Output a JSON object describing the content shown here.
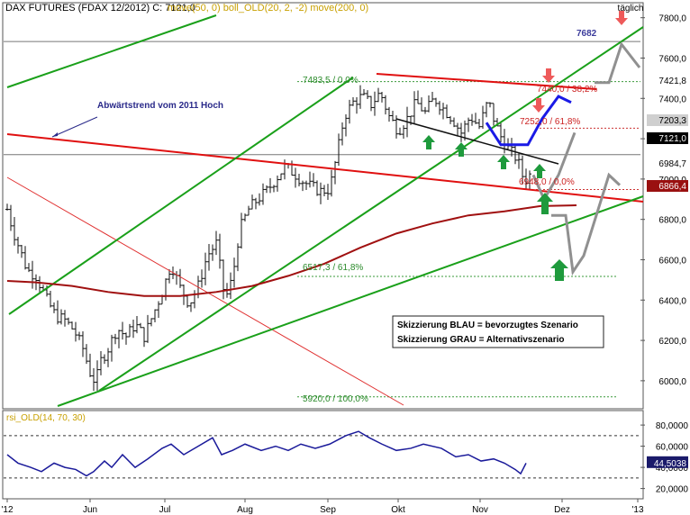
{
  "chart_data": [
    {
      "type": "bar",
      "subtype": "ohlc-price-chart",
      "instrument": "DAX FUTURES (FDAX 12/2012)",
      "header": {
        "symbol_text": "DAX FUTURES (FDAX 12/2012) C: 7121,0",
        "indicators_text": "move(50, 0) boll_OLD(20, 2, -2) move(200, 0)"
      },
      "period_label": "täglich",
      "y_ticks": [
        "7800,0",
        "7600,0",
        "7400,0",
        "7200,0",
        "7000,0",
        "6800,0",
        "6600,0",
        "6400,0",
        "6200,0",
        "6000,0"
      ],
      "y_tick_values": [
        7800,
        7600,
        7400,
        7200,
        7000,
        6800,
        6600,
        6400,
        6200,
        6000
      ],
      "ylim": [
        5870,
        7870
      ],
      "x_ticks": [
        "'12",
        "Jun",
        "Jul",
        "Aug",
        "Sep",
        "Okt",
        "Nov",
        "Dez",
        "'13"
      ],
      "right_axis_labels": [
        {
          "text": "7421,8",
          "value": 7421.8,
          "style": "plain"
        },
        {
          "text": "7203,3",
          "value": 7203.3,
          "style": "gray"
        },
        {
          "text": "7121,0",
          "value": 7121.0,
          "style": "black"
        },
        {
          "text": "6984,7",
          "value": 6984.7,
          "style": "plain"
        },
        {
          "text": "6866,4",
          "value": 6866.4,
          "style": "darkred"
        }
      ],
      "price_annotations": [
        {
          "text": "7682",
          "value": 7682,
          "color": "#3c3c9c"
        },
        {
          "text": "7483,5 / 0,0%",
          "value": 7483.5,
          "color": "#2a8a2a"
        },
        {
          "text": "7440,0 / 38,2%",
          "value": 7440,
          "color": "#cc2222"
        },
        {
          "text": "7252,0 / 61,8%",
          "value": 7252,
          "color": "#cc2222"
        },
        {
          "text": "6948,0 / 0,0%",
          "value": 6948,
          "color": "#cc2222"
        },
        {
          "text": "6517,3 / 61,8%",
          "value": 6517.3,
          "color": "#2a8a2a"
        },
        {
          "text": "5920,0 / 100,0%",
          "value": 5920,
          "color": "#2a8a2a"
        }
      ],
      "trend_label": "Abwärtstrend vom 2011 Hoch",
      "legend_box": [
        "Skizzierung BLAU = bevorzugtes Szenario",
        "Skizzierung GRAU = Alternativszenario"
      ],
      "colors": {
        "up_trend": "#1aa01a",
        "down_trend": "#e01010",
        "ma200": "#a01010",
        "scenario_blue": "#1a1ae6",
        "scenario_gray": "#909090",
        "arrow_green": "#1e9a3c",
        "arrow_red": "#ee5a5a",
        "price_bars": "#111111"
      }
    },
    {
      "type": "line",
      "subtype": "rsi-indicator",
      "label": "rsi_OLD(14, 70, 30)",
      "y_ticks": [
        "80,0000",
        "60,0000",
        "40,0000",
        "20,0000"
      ],
      "y_tick_values": [
        80,
        60,
        40,
        20
      ],
      "ylim": [
        12,
        92
      ],
      "reference_lines": [
        70,
        30
      ],
      "last_value_label": "44,5038",
      "last_value": 44.5
    }
  ]
}
